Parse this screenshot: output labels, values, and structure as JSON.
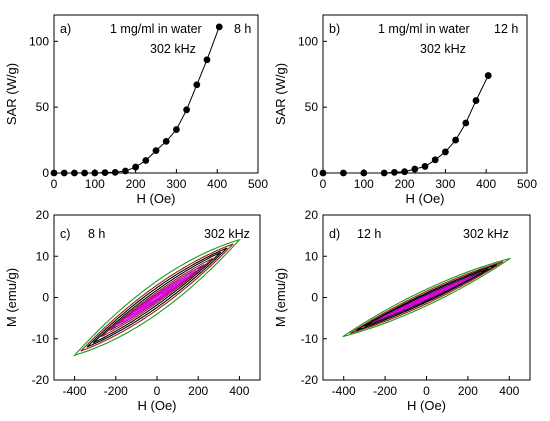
{
  "chart_data": [
    {
      "type": "line",
      "panel": "a)",
      "xlabel": "H (Oe)",
      "ylabel": "SAR (W/g)",
      "xlim": [
        0,
        500
      ],
      "ylim": [
        0,
        120
      ],
      "xticks": [
        "0",
        "100",
        "200",
        "300",
        "400",
        "500"
      ],
      "yticks": [
        "0",
        "50",
        "100"
      ],
      "annotations": {
        "sample": "1 mg/ml in water",
        "freq": "302 kHz",
        "time": "8 h"
      },
      "x": [
        0,
        25,
        50,
        75,
        100,
        125,
        150,
        175,
        200,
        225,
        250,
        275,
        300,
        325,
        350,
        375,
        405
      ],
      "values": [
        0,
        0,
        0,
        0,
        0,
        0.3,
        0.5,
        1.5,
        4.5,
        9.5,
        17,
        24,
        33,
        48,
        67,
        86,
        111
      ],
      "markers": true,
      "color": "#000000"
    },
    {
      "type": "line",
      "panel": "b)",
      "xlabel": "H (Oe)",
      "ylabel": "SAR (W/g)",
      "xlim": [
        0,
        500
      ],
      "ylim": [
        0,
        120
      ],
      "xticks": [
        "0",
        "100",
        "200",
        "300",
        "400",
        "500"
      ],
      "yticks": [
        "0",
        "50",
        "100"
      ],
      "annotations": {
        "sample": "1 mg/ml in water",
        "freq": "302 kHz",
        "time": "12 h"
      },
      "x": [
        0,
        50,
        100,
        150,
        175,
        200,
        225,
        250,
        275,
        300,
        325,
        350,
        375,
        405
      ],
      "values": [
        0,
        0,
        0,
        0,
        0.5,
        1,
        3,
        5,
        10,
        16,
        25,
        38,
        55,
        74
      ],
      "markers": true,
      "color": "#000000"
    },
    {
      "type": "line",
      "panel": "c)",
      "xlabel": "H (Oe)",
      "ylabel": "M (emu/g)",
      "xlim": [
        -500,
        500
      ],
      "ylim": [
        -20,
        20
      ],
      "xticks": [
        "-400",
        "-200",
        "0",
        "200",
        "400"
      ],
      "yticks": [
        "-20",
        "-10",
        "0",
        "10",
        "20"
      ],
      "annotations": {
        "time": "8 h",
        "freq": "302 kHz"
      },
      "series": [
        {
          "hmax": 400,
          "mmax": 14,
          "width": 4.0,
          "color": "#1a9a1a"
        },
        {
          "hmax": 370,
          "mmax": 13,
          "width": 3.0,
          "color": "#a01818"
        },
        {
          "hmax": 340,
          "mmax": 12,
          "width": 2.4,
          "color": "#000000"
        },
        {
          "hmax": 310,
          "mmax": 11,
          "width": 1.8,
          "color": "#000000"
        },
        {
          "hmax": 270,
          "mmax": 9.5,
          "width": 1.3,
          "color": "#a01818"
        },
        {
          "hmax": 230,
          "mmax": 8,
          "width": 0.9,
          "color": "#8a0a8a"
        },
        {
          "hmax": 190,
          "mmax": 6.5,
          "width": 0.6,
          "color": "#e000e0"
        },
        {
          "hmax": 150,
          "mmax": 5,
          "width": 0.4,
          "color": "#e000e0"
        },
        {
          "hmax": 110,
          "mmax": 3.5,
          "width": 0.2,
          "color": "#e000e0"
        }
      ]
    },
    {
      "type": "line",
      "panel": "d)",
      "xlabel": "H (Oe)",
      "ylabel": "M (emu/g)",
      "xlim": [
        -500,
        500
      ],
      "ylim": [
        -20,
        20
      ],
      "xticks": [
        "-400",
        "-200",
        "0",
        "200",
        "400"
      ],
      "yticks": [
        "-20",
        "-10",
        "0",
        "10",
        "20"
      ],
      "annotations": {
        "time": "12 h",
        "freq": "302 kHz"
      },
      "series": [
        {
          "hmax": 405,
          "mmax": 9.5,
          "width": 2.0,
          "color": "#1a9a1a"
        },
        {
          "hmax": 370,
          "mmax": 8.7,
          "width": 1.5,
          "color": "#a01818"
        },
        {
          "hmax": 340,
          "mmax": 8.0,
          "width": 1.1,
          "color": "#000000"
        },
        {
          "hmax": 300,
          "mmax": 7.0,
          "width": 0.8,
          "color": "#000000"
        },
        {
          "hmax": 260,
          "mmax": 6.0,
          "width": 0.5,
          "color": "#8a0a8a"
        },
        {
          "hmax": 220,
          "mmax": 5.0,
          "width": 0.3,
          "color": "#e000e0"
        },
        {
          "hmax": 170,
          "mmax": 4.0,
          "width": 0.15,
          "color": "#e000e0"
        }
      ]
    }
  ]
}
